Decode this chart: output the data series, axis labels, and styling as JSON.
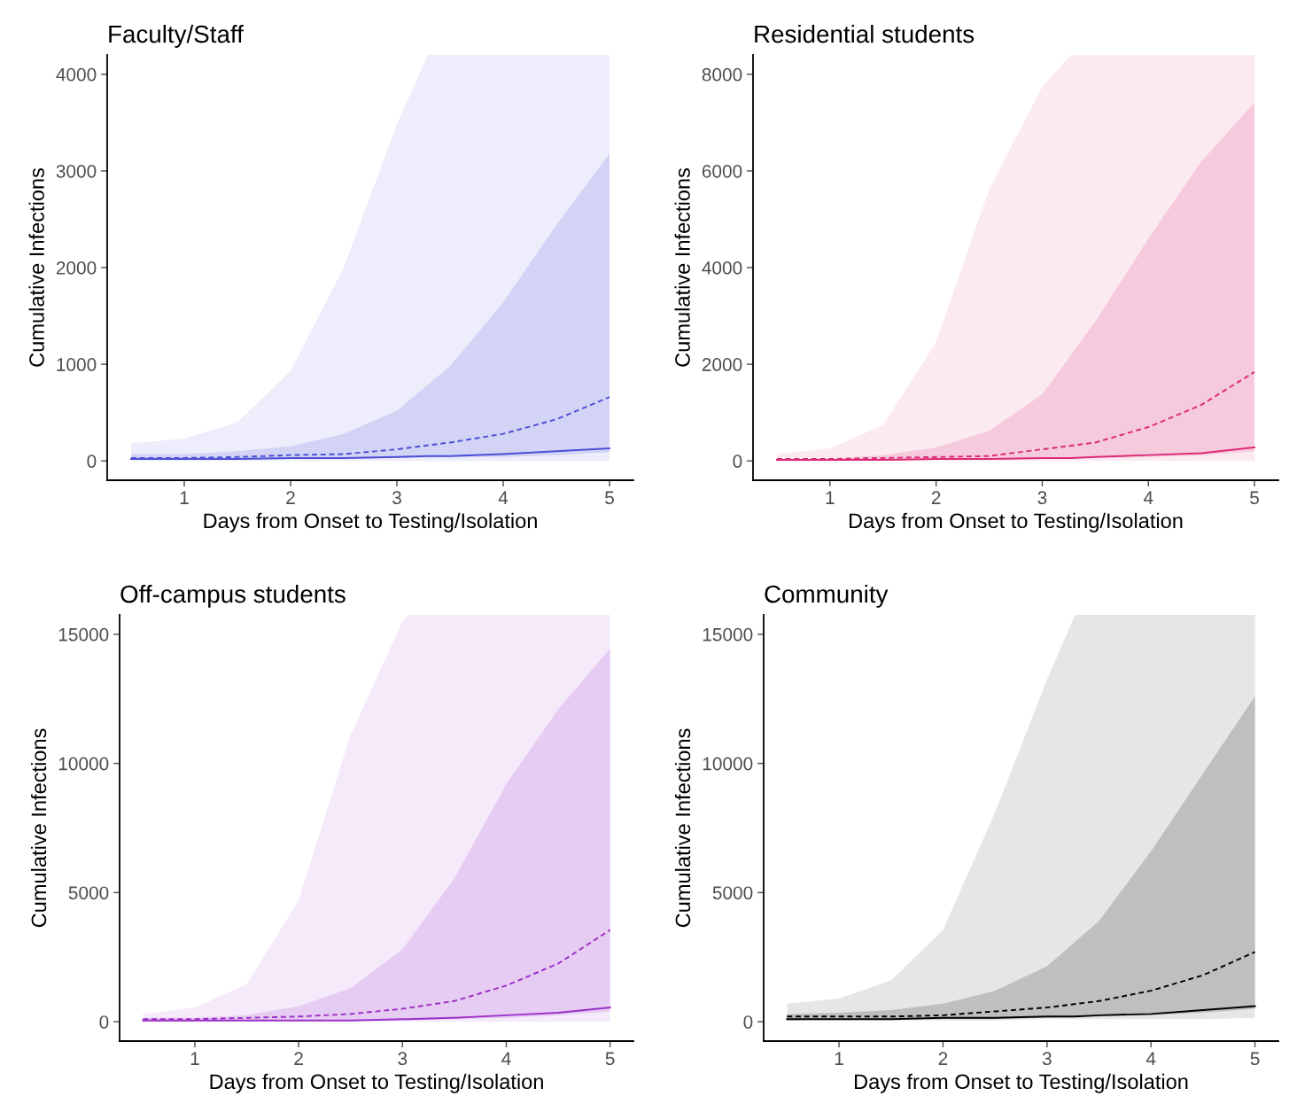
{
  "chart_data": [
    {
      "type": "line",
      "title": "Faculty/Staff",
      "xlabel": "Days from Onset to Testing/Isolation",
      "ylabel": "Cumulative Infections",
      "xlim": [
        0.275,
        5.225
      ],
      "ylim": [
        -200,
        4200
      ],
      "xticks": [
        1,
        2,
        3,
        4,
        5
      ],
      "yticks": [
        0,
        1000,
        2000,
        3000,
        4000
      ],
      "grid": false,
      "legend": false,
      "x": [
        0.5,
        1,
        1.5,
        2,
        2.5,
        3,
        3.5,
        4,
        4.5,
        5
      ],
      "series": [
        {
          "color": "#4b4fd6",
          "line_style": "solid",
          "x": [
            0.5,
            1,
            1.5,
            2,
            2.5,
            3,
            3.29,
            3.5,
            4,
            4.5,
            5
          ],
          "values": [
            20,
            20,
            20,
            30,
            30,
            40,
            50,
            50,
            70,
            100,
            130
          ],
          "lower": [
            0,
            0,
            0,
            0,
            0,
            0,
            0,
            0,
            0,
            0,
            0
          ],
          "upper": [
            180,
            230,
            400,
            930,
            2000,
            3480,
            4200,
            4200,
            4200,
            4200,
            4200
          ]
        },
        {
          "color": "#4b4fd6",
          "line_style": "dashed",
          "values": [
            30,
            30,
            40,
            60,
            70,
            120,
            190,
            280,
            430,
            660
          ],
          "lower": [
            10,
            10,
            10,
            20,
            20,
            30,
            40,
            40,
            60,
            90
          ],
          "upper": [
            70,
            70,
            100,
            150,
            280,
            520,
            980,
            1640,
            2440,
            3180
          ]
        }
      ]
    },
    {
      "type": "line",
      "title": "Residential students",
      "xlabel": "Days from Onset to Testing/Isolation",
      "ylabel": "Cumulative Infections",
      "xlim": [
        0.275,
        5.225
      ],
      "ylim": [
        -400,
        8400
      ],
      "xticks": [
        1,
        2,
        3,
        4,
        5
      ],
      "yticks": [
        0,
        2000,
        4000,
        6000,
        8000
      ],
      "grid": false,
      "legend": false,
      "x": [
        0.5,
        1,
        1.5,
        2,
        2.5,
        3,
        3.5,
        4,
        4.5,
        5
      ],
      "series": [
        {
          "color": "#dc2a76",
          "line_style": "solid",
          "x": [
            0.5,
            1,
            1.5,
            2,
            2.5,
            3,
            3.27,
            3.5,
            4,
            4.5,
            5
          ],
          "values": [
            20,
            20,
            20,
            40,
            40,
            60,
            60,
            80,
            120,
            160,
            280
          ],
          "lower": [
            0,
            0,
            0,
            0,
            0,
            0,
            0,
            0,
            0,
            0,
            0
          ],
          "upper": [
            140,
            260,
            740,
            2460,
            5620,
            7740,
            8400,
            8400,
            8400,
            8400,
            8400
          ]
        },
        {
          "color": "#dc2a76",
          "line_style": "dashed",
          "values": [
            40,
            40,
            60,
            80,
            100,
            240,
            380,
            700,
            1160,
            1840
          ],
          "lower": [
            0,
            0,
            20,
            20,
            20,
            40,
            60,
            80,
            120,
            200
          ],
          "upper": [
            20,
            40,
            120,
            280,
            620,
            1380,
            2880,
            4600,
            6200,
            7420
          ]
        }
      ]
    },
    {
      "type": "line",
      "title": "Off-campus students",
      "xlabel": "Days from Onset to Testing/Isolation",
      "ylabel": "Cumulative Infections",
      "xlim": [
        0.275,
        5.225
      ],
      "ylim": [
        -750,
        15750
      ],
      "xticks": [
        1,
        2,
        3,
        4,
        5
      ],
      "yticks": [
        0,
        5000,
        10000,
        15000
      ],
      "grid": false,
      "legend": false,
      "x": [
        0.5,
        1,
        1.5,
        2,
        2.5,
        3,
        3.5,
        4,
        4.5,
        5
      ],
      "series": [
        {
          "color": "#9b30c9",
          "line_style": "solid",
          "x": [
            0.5,
            1,
            1.5,
            2,
            2.5,
            3,
            3.06,
            3.5,
            4,
            4.5,
            5
          ],
          "values": [
            50,
            50,
            50,
            50,
            50,
            100,
            100,
            150,
            250,
            350,
            550
          ],
          "lower": [
            0,
            0,
            0,
            0,
            0,
            0,
            0,
            0,
            0,
            0,
            0
          ],
          "upper": [
            300,
            550,
            1450,
            4700,
            11100,
            15500,
            15750,
            15750,
            15750,
            15750,
            15750
          ]
        },
        {
          "color": "#9b30c9",
          "line_style": "dashed",
          "values": [
            100,
            100,
            150,
            200,
            300,
            500,
            800,
            1400,
            2250,
            3550
          ],
          "lower": [
            0,
            0,
            50,
            50,
            50,
            50,
            100,
            150,
            250,
            400
          ],
          "upper": [
            150,
            150,
            250,
            600,
            1300,
            2800,
            5550,
            9200,
            12100,
            14450
          ]
        }
      ]
    },
    {
      "type": "line",
      "title": "Community",
      "xlabel": "Days from Onset to Testing/Isolation",
      "ylabel": "Cumulative Infections",
      "xlim": [
        0.275,
        5.225
      ],
      "ylim": [
        -750,
        15750
      ],
      "xticks": [
        1,
        2,
        3,
        4,
        5
      ],
      "yticks": [
        0,
        5000,
        10000,
        15000
      ],
      "grid": false,
      "legend": false,
      "x": [
        0.5,
        1,
        1.5,
        2,
        2.5,
        3,
        3.5,
        4,
        4.5,
        5
      ],
      "series": [
        {
          "color": "#000000",
          "line_style": "solid",
          "x": [
            0.5,
            1,
            1.5,
            2,
            2.5,
            3,
            3.27,
            3.5,
            4,
            4.5,
            5
          ],
          "values": [
            100,
            100,
            100,
            150,
            150,
            200,
            200,
            250,
            300,
            450,
            600
          ],
          "lower": [
            50,
            50,
            50,
            50,
            50,
            100,
            100,
            100,
            100,
            100,
            150
          ],
          "upper": [
            700,
            900,
            1600,
            3550,
            8100,
            13250,
            15750,
            15750,
            15750,
            15750,
            15750
          ]
        },
        {
          "color": "#000000",
          "line_style": "dashed",
          "values": [
            200,
            200,
            200,
            250,
            400,
            550,
            800,
            1200,
            1800,
            2700
          ],
          "lower": [
            50,
            100,
            100,
            100,
            100,
            150,
            200,
            250,
            350,
            500
          ],
          "upper": [
            300,
            350,
            450,
            700,
            1200,
            2150,
            3900,
            6600,
            9600,
            12600
          ]
        }
      ]
    }
  ]
}
